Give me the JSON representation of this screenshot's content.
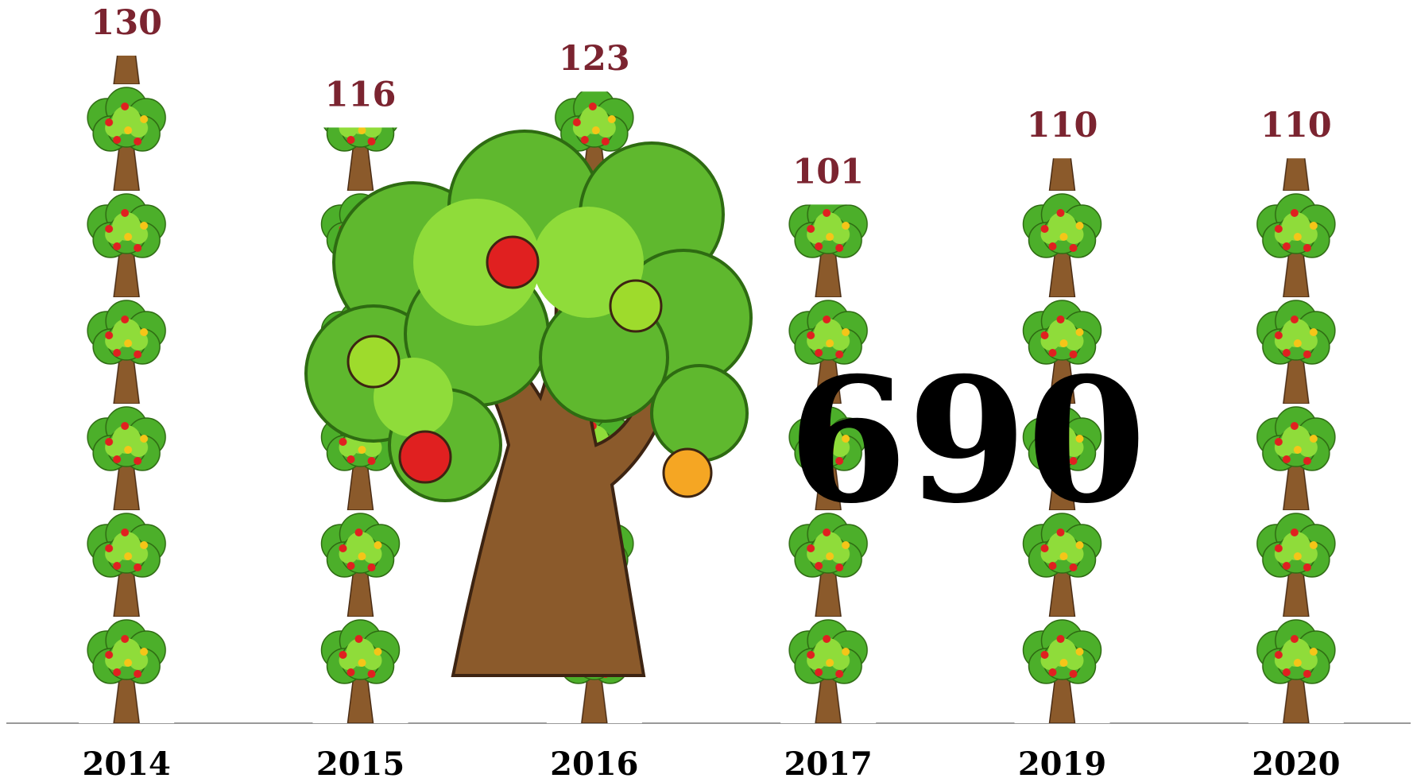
{
  "chart_data": {
    "type": "pictograph",
    "categories": [
      "2014",
      "2015",
      "2016",
      "2017",
      "2019",
      "2020"
    ],
    "values": [
      130,
      116,
      123,
      101,
      110,
      110
    ],
    "ylim": [
      0,
      130
    ],
    "value_label_color": "#7b2430",
    "annotation": "690"
  }
}
